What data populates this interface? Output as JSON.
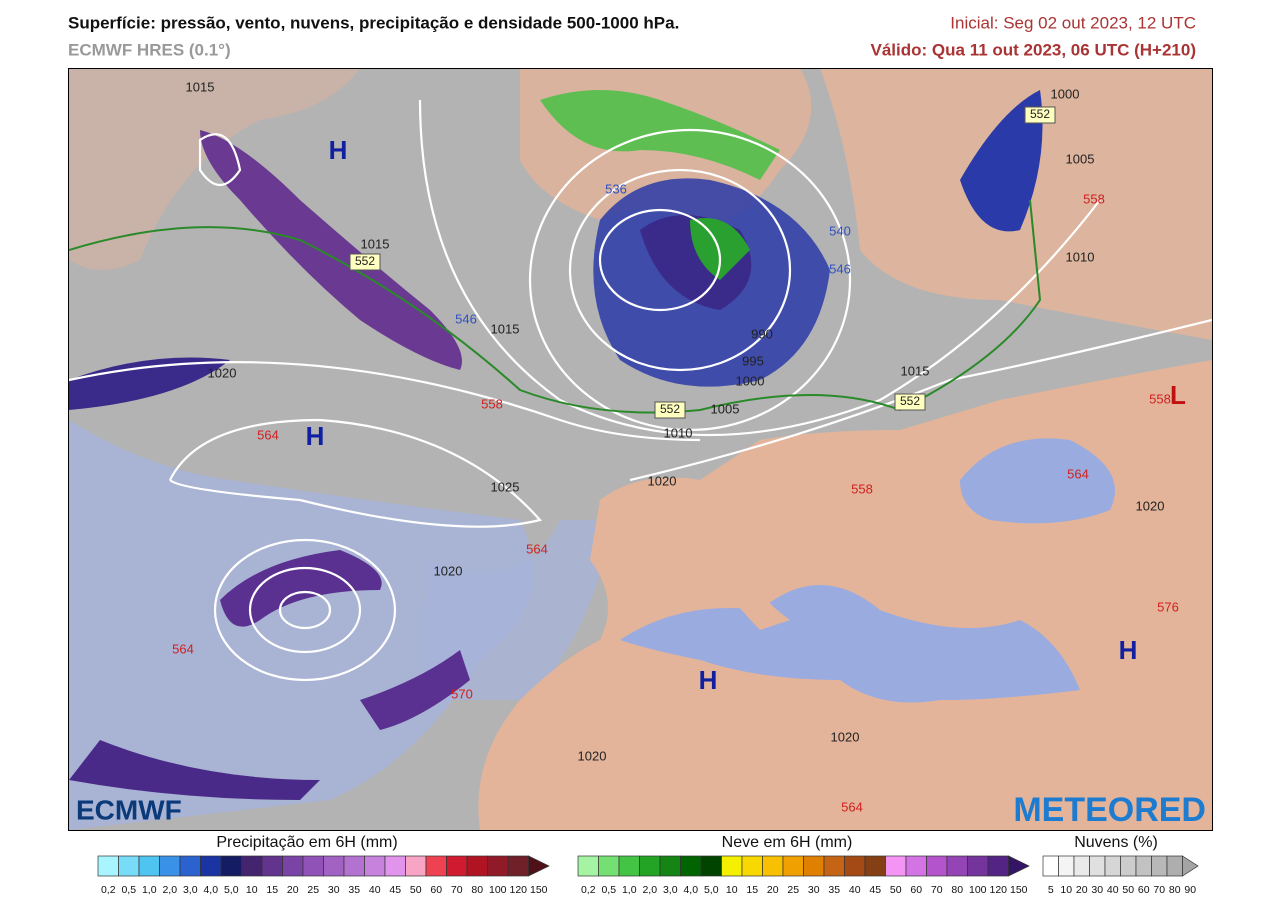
{
  "header": {
    "title": "Superfície: pressão, vento, nuvens, precipitação e densidade 500-1000 hPa.",
    "model": "ECMWF HRES (0.1°)",
    "init": "Inicial: Seg 02 out 2023, 12 UTC",
    "valid": "Válido: Qua 11 out 2023, 06 UTC (H+210)"
  },
  "map": {
    "isobar_labels": [
      "1015",
      "1015",
      "1015",
      "1020",
      "1025",
      "1020",
      "1020",
      "1010",
      "1005",
      "1000",
      "995",
      "990",
      "1015",
      "1000",
      "1005",
      "1010",
      "1020",
      "1020",
      "1020"
    ],
    "thickness_box_labels": [
      "552",
      "552",
      "552",
      "552"
    ],
    "thickness_warm_labels": [
      "558",
      "564",
      "564",
      "564",
      "570",
      "564",
      "558",
      "564",
      "576",
      "558",
      "558"
    ],
    "thickness_cold_labels": [
      "546",
      "540",
      "546",
      "536"
    ],
    "high_centers": [
      "H",
      "H",
      "H",
      "H"
    ],
    "low_centers": [
      "L"
    ],
    "logos": [
      "ECMWF",
      "METEORED"
    ]
  },
  "legends": [
    {
      "title": "Precipitação em 6H (mm)",
      "colors": [
        "#a8f4ff",
        "#78dcf8",
        "#50c4f0",
        "#3a92e8",
        "#2a62d0",
        "#1a34a4",
        "#141c64",
        "#44246e",
        "#62348e",
        "#7a44a6",
        "#9052b6",
        "#a262c4",
        "#b472d0",
        "#c682dc",
        "#e094ec",
        "#f8a4c4",
        "#ee4252",
        "#d01a30",
        "#b01422",
        "#901a28",
        "#702028",
        "#501018"
      ],
      "labels": [
        "0,2",
        "0,5",
        "1,0",
        "2,0",
        "3,0",
        "4,0",
        "5,0",
        "10",
        "15",
        "20",
        "25",
        "30",
        "35",
        "40",
        "45",
        "50",
        "60",
        "70",
        "80",
        "100",
        "120",
        "150"
      ]
    },
    {
      "title": "Neve em 6H (mm)",
      "colors": [
        "#a4f4a4",
        "#74e074",
        "#44c444",
        "#24a424",
        "#148414",
        "#006400",
        "#004400",
        "#f4f000",
        "#f8d800",
        "#f8c000",
        "#f0a000",
        "#e08000",
        "#c46414",
        "#a44a14",
        "#844014",
        "#f494f4",
        "#d474e4",
        "#b454cc",
        "#9444b4",
        "#74349c",
        "#542484",
        "#341464"
      ],
      "labels": [
        "0,2",
        "0,5",
        "1,0",
        "2,0",
        "3,0",
        "4,0",
        "5,0",
        "10",
        "15",
        "20",
        "25",
        "30",
        "35",
        "40",
        "45",
        "50",
        "60",
        "70",
        "80",
        "100",
        "120",
        "150"
      ]
    },
    {
      "title": "Nuvens (%)",
      "colors": [
        "#ffffff",
        "#f4f4f4",
        "#eaeaea",
        "#e0e0e0",
        "#d6d6d6",
        "#cccccc",
        "#c2c2c2",
        "#b8b8b8",
        "#aeaeae",
        "#a4a4a4"
      ],
      "labels": [
        "5",
        "10",
        "20",
        "30",
        "40",
        "50",
        "60",
        "70",
        "80",
        "90"
      ]
    }
  ]
}
